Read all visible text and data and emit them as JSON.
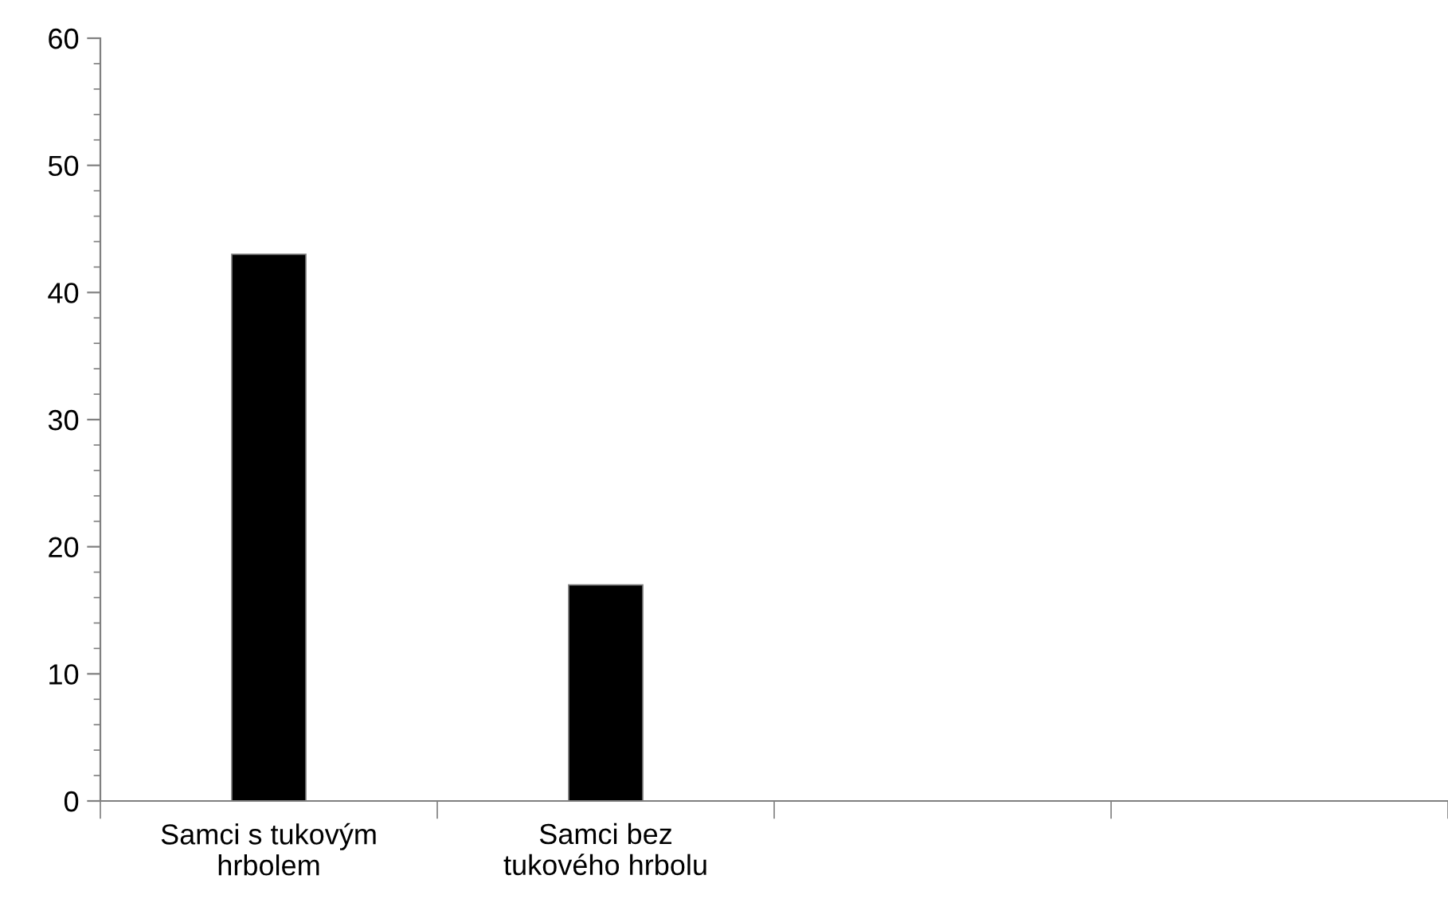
{
  "chart_data": {
    "type": "bar",
    "categories": [
      "Samci s tukovým\nhrbolem",
      "Samci bez\ntukového hrbolu",
      null,
      null
    ],
    "values": [
      43,
      17,
      null,
      null
    ],
    "color": "#000000",
    "ylim": [
      0,
      60
    ],
    "yticks": [
      0,
      10,
      20,
      30,
      40,
      50,
      60
    ],
    "grid": false,
    "legend": false
  }
}
